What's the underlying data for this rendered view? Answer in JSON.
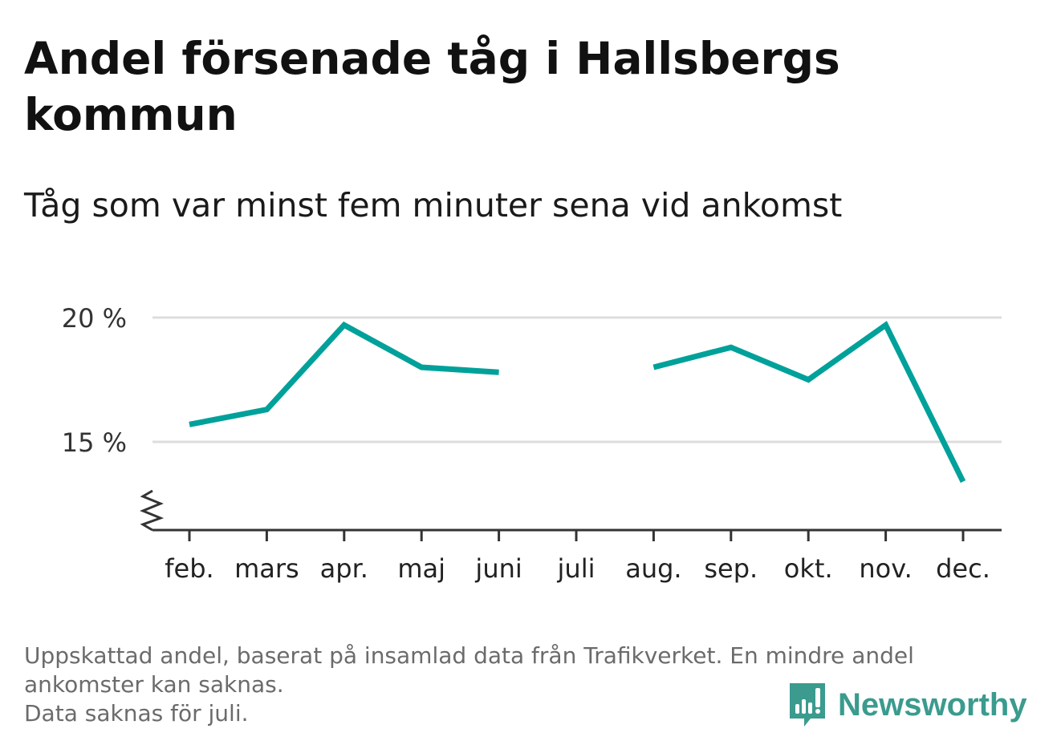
{
  "title": "Andel försenade tåg i Hallsbergs kommun",
  "subtitle": "Tåg som var minst fem minuter sena vid ankomst",
  "footnote": {
    "line1": "Uppskattad andel, baserat på insamlad data från Trafikverket. En mindre andel",
    "line2": "ankomster kan saknas.",
    "line3": "Data saknas för juli."
  },
  "brand": {
    "name": "Newsworthy",
    "icon": "newsworthy-logo-icon",
    "color": "#3a9b8e"
  },
  "chart_data": {
    "type": "line",
    "title": "Andel försenade tåg i Hallsbergs kommun",
    "subtitle": "Tåg som var minst fem minuter sena vid ankomst",
    "xlabel": "",
    "ylabel": "",
    "categories": [
      "feb.",
      "mars",
      "apr.",
      "maj",
      "juni",
      "juli",
      "aug.",
      "sep.",
      "okt.",
      "nov.",
      "dec."
    ],
    "series": [
      {
        "values": [
          15.7,
          16.3,
          19.7,
          18.0,
          17.8,
          null,
          18.0,
          18.8,
          17.5,
          19.7,
          13.4
        ]
      }
    ],
    "yticks": [
      15,
      20
    ],
    "ytick_labels": [
      "15 %",
      "20 %"
    ],
    "ylim": [
      11.5,
      20.5
    ],
    "axis_break": true,
    "grid": true,
    "line_color": "#00a19a",
    "grid_color": "#dddddd",
    "axis_color": "#333333"
  }
}
